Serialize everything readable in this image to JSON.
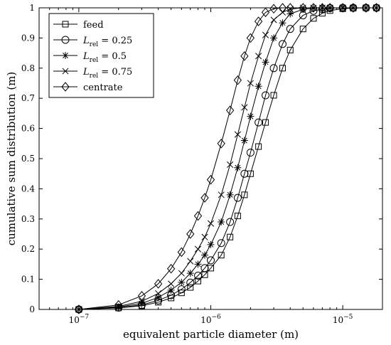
{
  "chart_data": {
    "type": "line",
    "title": "",
    "xlabel": "equivalent particle diameter (m)",
    "ylabel": "cumulative sum distribution (m)",
    "xscale": "log",
    "xlim": [
      5e-08,
      2e-05
    ],
    "ylim": [
      0,
      1
    ],
    "grid": false,
    "legend_position": "top-left",
    "yticks": [
      0,
      0.1,
      0.2,
      0.3,
      0.4,
      0.5,
      0.6,
      0.7,
      0.8,
      0.9,
      1
    ],
    "ytick_labels": [
      "0",
      "0.1",
      "0.2",
      "0.3",
      "0.4",
      "0.5",
      "0.6",
      "0.7",
      "0.8",
      "0.9",
      "1"
    ],
    "xticks": [
      {
        "value": 1e-07,
        "base": "10",
        "exp": "−7"
      },
      {
        "value": 1e-06,
        "base": "10",
        "exp": "−6"
      },
      {
        "value": 1e-05,
        "base": "10",
        "exp": "−5"
      }
    ],
    "series": [
      {
        "name": "feed",
        "label_parts": {
          "main": "feed",
          "sub": "",
          "rest": ""
        },
        "marker": "square",
        "x": [
          1e-07,
          2e-07,
          3e-07,
          4e-07,
          5e-07,
          6e-07,
          7e-07,
          8e-07,
          9e-07,
          1e-06,
          1.2e-06,
          1.4e-06,
          1.6e-06,
          1.8e-06,
          2e-06,
          2.3e-06,
          2.6e-06,
          3e-06,
          3.5e-06,
          4e-06,
          5e-06,
          6e-06,
          7e-06,
          8e-06,
          1e-05,
          1.2e-05,
          1.5e-05,
          1.8e-05
        ],
        "y": [
          0.0,
          0.005,
          0.012,
          0.024,
          0.038,
          0.055,
          0.073,
          0.094,
          0.115,
          0.137,
          0.18,
          0.24,
          0.31,
          0.38,
          0.45,
          0.54,
          0.62,
          0.71,
          0.8,
          0.86,
          0.93,
          0.965,
          0.982,
          0.991,
          0.997,
          0.999,
          1.0,
          1.0
        ]
      },
      {
        "name": "L rel = 0.25",
        "label_parts": {
          "main": "L",
          "sub": "rel",
          "rest": " = 0.25"
        },
        "marker": "circle",
        "x": [
          1e-07,
          2e-07,
          3e-07,
          4e-07,
          5e-07,
          6e-07,
          7e-07,
          8e-07,
          9e-07,
          1e-06,
          1.2e-06,
          1.4e-06,
          1.6e-06,
          1.8e-06,
          2e-06,
          2.3e-06,
          2.6e-06,
          3e-06,
          3.5e-06,
          4e-06,
          5e-06,
          6e-06,
          7e-06,
          8e-06,
          1e-05,
          1.2e-05,
          1.5e-05,
          1.8e-05
        ],
        "y": [
          0.0,
          0.006,
          0.015,
          0.03,
          0.047,
          0.067,
          0.089,
          0.112,
          0.137,
          0.163,
          0.22,
          0.29,
          0.37,
          0.45,
          0.52,
          0.62,
          0.71,
          0.8,
          0.88,
          0.93,
          0.975,
          0.99,
          0.996,
          0.999,
          1.0,
          1.0,
          1.0,
          1.0
        ]
      },
      {
        "name": "L rel = 0.5",
        "label_parts": {
          "main": "L",
          "sub": "rel",
          "rest": " = 0.5"
        },
        "marker": "asterisk",
        "x": [
          1e-07,
          2e-07,
          3e-07,
          4e-07,
          5e-07,
          6e-07,
          7e-07,
          8e-07,
          9e-07,
          1e-06,
          1.2e-06,
          1.4e-06,
          1.6e-06,
          1.8e-06,
          2e-06,
          2.3e-06,
          2.6e-06,
          3e-06,
          3.5e-06,
          4e-06,
          5e-06,
          6e-06,
          7e-06,
          8e-06,
          1e-05,
          1.2e-05,
          1.5e-05,
          1.8e-05
        ],
        "y": [
          0.0,
          0.008,
          0.02,
          0.04,
          0.064,
          0.09,
          0.12,
          0.15,
          0.18,
          0.215,
          0.29,
          0.38,
          0.47,
          0.56,
          0.64,
          0.74,
          0.82,
          0.9,
          0.95,
          0.98,
          0.995,
          0.999,
          1.0,
          1.0,
          1.0,
          1.0,
          1.0,
          1.0
        ]
      },
      {
        "name": "L rel = 0.75",
        "label_parts": {
          "main": "L",
          "sub": "rel",
          "rest": " = 0.75"
        },
        "marker": "cross",
        "x": [
          1e-07,
          2e-07,
          3e-07,
          4e-07,
          5e-07,
          6e-07,
          7e-07,
          8e-07,
          9e-07,
          1e-06,
          1.2e-06,
          1.4e-06,
          1.6e-06,
          1.8e-06,
          2e-06,
          2.3e-06,
          2.6e-06,
          3e-06,
          3.5e-06,
          4e-06,
          5e-06,
          6e-06,
          7e-06,
          8e-06,
          1e-05,
          1.2e-05,
          1.5e-05,
          1.8e-05
        ],
        "y": [
          0.0,
          0.01,
          0.027,
          0.053,
          0.085,
          0.12,
          0.16,
          0.2,
          0.24,
          0.285,
          0.38,
          0.48,
          0.58,
          0.67,
          0.75,
          0.84,
          0.91,
          0.96,
          0.985,
          0.996,
          1.0,
          1.0,
          1.0,
          1.0,
          1.0,
          1.0,
          1.0,
          1.0
        ]
      },
      {
        "name": "centrate",
        "label_parts": {
          "main": "centrate",
          "sub": "",
          "rest": ""
        },
        "marker": "diamond",
        "x": [
          1e-07,
          2e-07,
          3e-07,
          4e-07,
          5e-07,
          6e-07,
          7e-07,
          8e-07,
          9e-07,
          1e-06,
          1.2e-06,
          1.4e-06,
          1.6e-06,
          1.8e-06,
          2e-06,
          2.3e-06,
          2.6e-06,
          3e-06,
          3.5e-06,
          4e-06,
          5e-06,
          6e-06,
          7e-06,
          8e-06,
          1e-05,
          1.2e-05,
          1.5e-05,
          1.8e-05
        ],
        "y": [
          0.0,
          0.015,
          0.045,
          0.085,
          0.135,
          0.19,
          0.25,
          0.31,
          0.37,
          0.43,
          0.55,
          0.66,
          0.76,
          0.84,
          0.9,
          0.955,
          0.985,
          0.997,
          1.0,
          1.0,
          1.0,
          1.0,
          1.0,
          1.0,
          1.0,
          1.0,
          1.0,
          1.0
        ]
      }
    ]
  }
}
